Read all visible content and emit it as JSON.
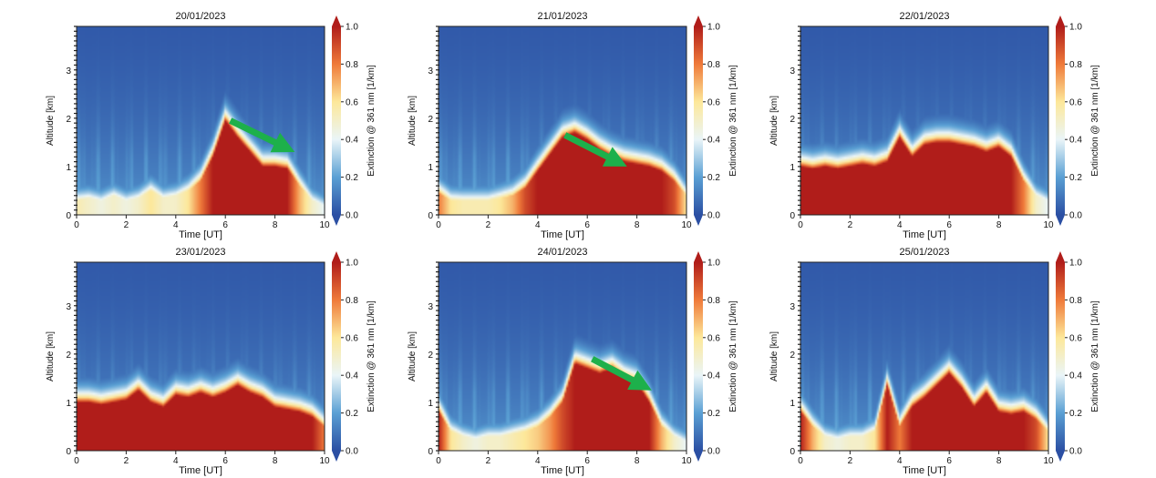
{
  "chart_data": [
    {
      "type": "heatmap",
      "title": "20/01/2023",
      "xlabel": "Time [UT]",
      "ylabel": "Altitude [km]",
      "colorbar_label": "Extinction @ 361 nm [1/km]",
      "xlim": [
        0,
        10
      ],
      "ylim": [
        0,
        3.9
      ],
      "clim": [
        0,
        1.0
      ],
      "xticks": [
        0,
        2,
        4,
        6,
        8,
        10
      ],
      "yticks": [
        0,
        1,
        2,
        3
      ],
      "colorbar_ticks": [
        "0.0",
        "0.2",
        "0.4",
        "0.6",
        "0.8",
        "1.0"
      ],
      "time": [
        0,
        0.5,
        1,
        1.5,
        2,
        2.5,
        3,
        3.5,
        4,
        4.5,
        5,
        5.5,
        6,
        6.5,
        7,
        7.5,
        8,
        8.5,
        9,
        9.5,
        10
      ],
      "layer_top_km": [
        0.3,
        0.35,
        0.3,
        0.4,
        0.3,
        0.35,
        0.5,
        0.35,
        0.4,
        0.5,
        0.7,
        1.2,
        1.95,
        1.6,
        1.3,
        1.0,
        1.0,
        0.95,
        0.6,
        0.3,
        0.2
      ],
      "peak_extinction": [
        0.55,
        0.5,
        0.45,
        0.5,
        0.45,
        0.5,
        0.6,
        0.5,
        0.5,
        0.6,
        0.8,
        1.0,
        1.0,
        1.0,
        1.0,
        1.0,
        1.0,
        1.0,
        0.7,
        0.5,
        0.4
      ],
      "annotation": "green arrow",
      "arrow": [
        [
          6.2,
          1.95
        ],
        [
          8.8,
          1.3
        ]
      ]
    },
    {
      "type": "heatmap",
      "title": "21/01/2023",
      "xlabel": "Time [UT]",
      "ylabel": "Altitude [km]",
      "colorbar_label": "Extinction @ 361 nm [1/km]",
      "xlim": [
        0,
        10
      ],
      "ylim": [
        0,
        3.9
      ],
      "clim": [
        0,
        1.0
      ],
      "xticks": [
        0,
        2,
        4,
        6,
        8,
        10
      ],
      "yticks": [
        0,
        1,
        2,
        3
      ],
      "colorbar_ticks": [
        "0.0",
        "0.2",
        "0.4",
        "0.6",
        "0.8",
        "1.0"
      ],
      "time": [
        0,
        0.5,
        1,
        1.5,
        2,
        2.5,
        3,
        3.5,
        4,
        4.5,
        5,
        5.5,
        6,
        6.5,
        7,
        7.5,
        8,
        8.5,
        9,
        9.5,
        10
      ],
      "layer_top_km": [
        0.45,
        0.3,
        0.3,
        0.3,
        0.3,
        0.35,
        0.4,
        0.55,
        0.9,
        1.25,
        1.6,
        1.7,
        1.55,
        1.35,
        1.2,
        1.1,
        1.05,
        1.0,
        0.9,
        0.7,
        0.4
      ],
      "peak_extinction": [
        0.8,
        0.6,
        0.55,
        0.55,
        0.55,
        0.6,
        0.7,
        0.9,
        1.0,
        1.0,
        1.0,
        1.0,
        1.0,
        1.0,
        1.0,
        1.0,
        1.0,
        1.0,
        1.0,
        0.9,
        0.6
      ],
      "annotation": "green arrow",
      "arrow": [
        [
          5.1,
          1.65
        ],
        [
          7.6,
          1.0
        ]
      ]
    },
    {
      "type": "heatmap",
      "title": "22/01/2023",
      "xlabel": "Time [UT]",
      "ylabel": "Altitude [km]",
      "colorbar_label": "Extinction @ 361 nm [1/km]",
      "xlim": [
        0,
        10
      ],
      "ylim": [
        0,
        3.9
      ],
      "clim": [
        0,
        1.0
      ],
      "xticks": [
        0,
        2,
        4,
        6,
        8,
        10
      ],
      "yticks": [
        0,
        1,
        2,
        3
      ],
      "colorbar_ticks": [
        "0.0",
        "0.2",
        "0.4",
        "0.6",
        "0.8",
        "1.0"
      ],
      "time": [
        0,
        0.5,
        1,
        1.5,
        2,
        2.5,
        3,
        3.5,
        4,
        4.5,
        5,
        5.5,
        6,
        6.5,
        7,
        7.5,
        8,
        8.5,
        9,
        9.5,
        10
      ],
      "layer_top_km": [
        1.0,
        0.95,
        1.0,
        0.95,
        1.0,
        1.05,
        1.0,
        1.1,
        1.6,
        1.2,
        1.45,
        1.5,
        1.5,
        1.45,
        1.4,
        1.3,
        1.4,
        1.2,
        0.7,
        0.4,
        0.3
      ],
      "peak_extinction": [
        1.0,
        1.0,
        1.0,
        1.0,
        1.0,
        1.0,
        1.0,
        1.0,
        1.0,
        1.0,
        1.0,
        1.0,
        1.0,
        1.0,
        1.0,
        1.0,
        1.0,
        1.0,
        0.8,
        0.5,
        0.4
      ]
    },
    {
      "type": "heatmap",
      "title": "23/01/2023",
      "xlabel": "Time [UT]",
      "ylabel": "Altitude [km]",
      "colorbar_label": "Extinction @ 361 nm [1/km]",
      "xlim": [
        0,
        10
      ],
      "ylim": [
        0,
        3.9
      ],
      "clim": [
        0,
        1.0
      ],
      "xticks": [
        0,
        2,
        4,
        6,
        8,
        10
      ],
      "yticks": [
        0,
        1,
        2,
        3
      ],
      "colorbar_ticks": [
        "0.0",
        "0.2",
        "0.4",
        "0.6",
        "0.8",
        "1.0"
      ],
      "time": [
        0,
        0.5,
        1,
        1.5,
        2,
        2.5,
        3,
        3.5,
        4,
        4.5,
        5,
        5.5,
        6,
        6.5,
        7,
        7.5,
        8,
        8.5,
        9,
        9.5,
        10
      ],
      "layer_top_km": [
        1.0,
        1.0,
        0.95,
        1.0,
        1.05,
        1.25,
        1.0,
        0.9,
        1.15,
        1.1,
        1.2,
        1.1,
        1.2,
        1.35,
        1.2,
        1.1,
        0.9,
        0.85,
        0.8,
        0.7,
        0.5
      ],
      "peak_extinction": [
        1.0,
        1.0,
        1.0,
        1.0,
        1.0,
        1.0,
        1.0,
        1.0,
        1.0,
        1.0,
        1.0,
        1.0,
        1.0,
        1.0,
        1.0,
        1.0,
        1.0,
        1.0,
        1.0,
        1.0,
        0.8
      ]
    },
    {
      "type": "heatmap",
      "title": "24/01/2023",
      "xlabel": "Time [UT]",
      "ylabel": "Altitude [km]",
      "colorbar_label": "Extinction @ 361 nm [1/km]",
      "xlim": [
        0,
        10
      ],
      "ylim": [
        0,
        3.9
      ],
      "clim": [
        0,
        1.0
      ],
      "xticks": [
        0,
        2,
        4,
        6,
        8,
        10
      ],
      "yticks": [
        0,
        1,
        2,
        3
      ],
      "colorbar_ticks": [
        "0.0",
        "0.2",
        "0.4",
        "0.6",
        "0.8",
        "1.0"
      ],
      "time": [
        0,
        0.5,
        1,
        1.5,
        2,
        2.5,
        3,
        3.5,
        4,
        4.5,
        5,
        5.5,
        6,
        6.5,
        7,
        7.5,
        8,
        8.5,
        9,
        9.5,
        10
      ],
      "layer_top_km": [
        0.8,
        0.4,
        0.3,
        0.25,
        0.3,
        0.3,
        0.35,
        0.4,
        0.5,
        0.7,
        1.0,
        1.8,
        1.7,
        1.6,
        1.7,
        1.5,
        1.4,
        1.0,
        0.5,
        0.3,
        0.2
      ],
      "peak_extinction": [
        1.0,
        0.6,
        0.5,
        0.45,
        0.5,
        0.5,
        0.55,
        0.6,
        0.65,
        0.75,
        0.9,
        1.0,
        1.0,
        1.0,
        1.0,
        1.0,
        1.0,
        1.0,
        0.7,
        0.5,
        0.4
      ],
      "annotation": "green arrow",
      "arrow": [
        [
          6.2,
          1.9
        ],
        [
          8.6,
          1.25
        ]
      ]
    },
    {
      "type": "heatmap",
      "title": "25/01/2023",
      "xlabel": "Time [UT]",
      "ylabel": "Altitude [km]",
      "colorbar_label": "Extinction @ 361 nm [1/km]",
      "xlim": [
        0,
        10
      ],
      "ylim": [
        0,
        3.9
      ],
      "clim": [
        0,
        1.0
      ],
      "xticks": [
        0,
        2,
        4,
        6,
        8,
        10
      ],
      "yticks": [
        0,
        1,
        2,
        3
      ],
      "colorbar_ticks": [
        "0.0",
        "0.2",
        "0.4",
        "0.6",
        "0.8",
        "1.0"
      ],
      "time": [
        0,
        0.5,
        1,
        1.5,
        2,
        2.5,
        3,
        3.5,
        4,
        4.5,
        5,
        5.5,
        6,
        6.5,
        7,
        7.5,
        8,
        8.5,
        9,
        9.5,
        10
      ],
      "layer_top_km": [
        0.8,
        0.5,
        0.3,
        0.25,
        0.3,
        0.3,
        0.4,
        1.35,
        0.5,
        0.9,
        1.1,
        1.35,
        1.6,
        1.3,
        0.9,
        1.2,
        0.8,
        0.75,
        0.8,
        0.65,
        0.4
      ],
      "peak_extinction": [
        1.0,
        0.7,
        0.5,
        0.45,
        0.5,
        0.5,
        0.6,
        1.0,
        0.8,
        1.0,
        1.0,
        1.0,
        1.0,
        1.0,
        1.0,
        1.0,
        1.0,
        1.0,
        1.0,
        0.9,
        0.6
      ]
    }
  ]
}
